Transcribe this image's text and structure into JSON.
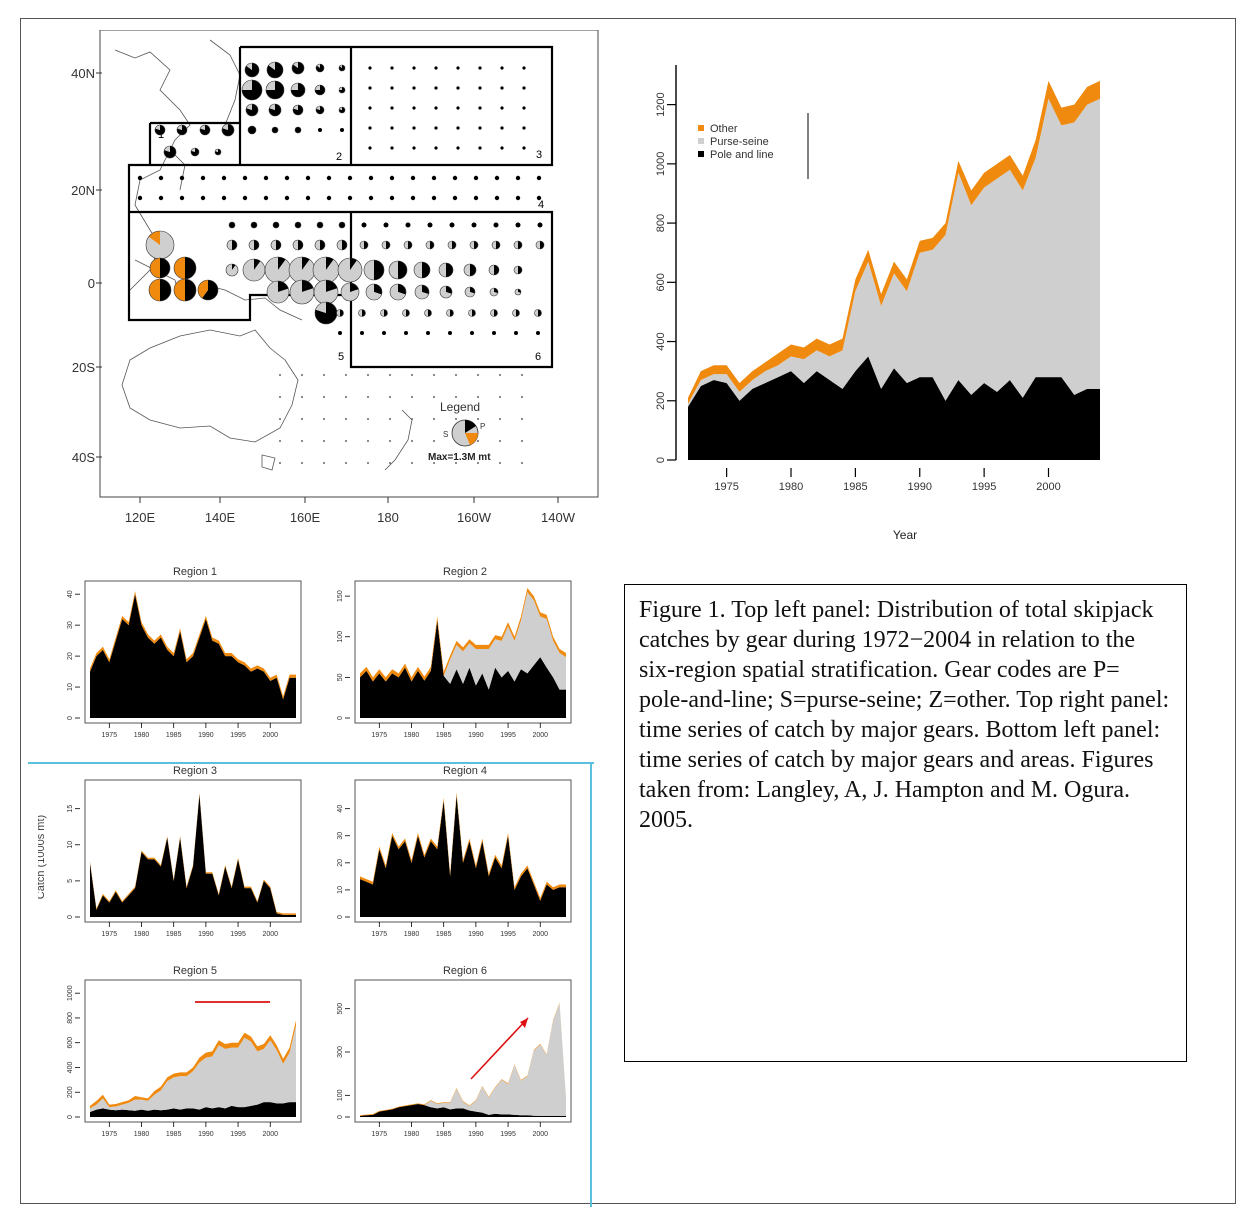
{
  "map": {
    "lat_labels": [
      "40N",
      "20N",
      "0",
      "20S",
      "40S"
    ],
    "lon_labels": [
      "120E",
      "140E",
      "160E",
      "180",
      "160W",
      "140W"
    ],
    "region_labels": [
      "1",
      "2",
      "3",
      "4",
      "5",
      "6"
    ],
    "legend_title": "Legend",
    "legend_max": "Max=1.3M mt",
    "legend_codes": [
      "S",
      "P"
    ],
    "colors": {
      "other": "#f08a0e",
      "purse_seine": "#cfcfcf",
      "pole_line": "#000000"
    }
  },
  "chart_data": [
    {
      "type": "area",
      "id": "total",
      "x": [
        1972,
        1973,
        1974,
        1975,
        1976,
        1977,
        1978,
        1979,
        1980,
        1981,
        1982,
        1983,
        1984,
        1985,
        1986,
        1987,
        1988,
        1989,
        1990,
        1991,
        1992,
        1993,
        1994,
        1995,
        1996,
        1997,
        1998,
        1999,
        2000,
        2001,
        2002,
        2003,
        2004
      ],
      "series": [
        {
          "name": "Pole and line",
          "key": "pl",
          "values": [
            180,
            250,
            270,
            260,
            200,
            240,
            260,
            280,
            300,
            260,
            300,
            270,
            240,
            300,
            350,
            240,
            310,
            260,
            280,
            280,
            200,
            270,
            220,
            260,
            230,
            270,
            210,
            280,
            280,
            280,
            220,
            240,
            240
          ]
        },
        {
          "name": "Purse-seine",
          "key": "ps",
          "values": [
            10,
            20,
            20,
            30,
            30,
            30,
            40,
            40,
            50,
            80,
            70,
            80,
            130,
            270,
            320,
            280,
            320,
            310,
            420,
            430,
            560,
            700,
            640,
            660,
            720,
            710,
            700,
            740,
            940,
            850,
            920,
            960,
            980
          ]
        },
        {
          "name": "Other",
          "key": "ot",
          "values": [
            20,
            30,
            30,
            30,
            30,
            30,
            30,
            40,
            40,
            40,
            40,
            40,
            40,
            40,
            40,
            40,
            40,
            40,
            40,
            40,
            40,
            40,
            50,
            50,
            50,
            50,
            50,
            60,
            60,
            60,
            60,
            60,
            60
          ]
        }
      ],
      "xticks": [
        1975,
        1980,
        1985,
        1990,
        1995,
        2000
      ],
      "yticks": [
        0,
        200,
        400,
        600,
        800,
        1000,
        1200
      ],
      "ylim": [
        0,
        1300
      ],
      "xlabel": "Year",
      "legend": [
        "Other",
        "Purse-seine",
        "Pole and line"
      ],
      "legend_position": "top-left"
    },
    {
      "type": "area",
      "id": "r1",
      "title": "Region 1",
      "x": [
        1972,
        1973,
        1974,
        1975,
        1976,
        1977,
        1978,
        1979,
        1980,
        1981,
        1982,
        1983,
        1984,
        1985,
        1986,
        1987,
        1988,
        1989,
        1990,
        1991,
        1992,
        1993,
        1994,
        1995,
        1996,
        1997,
        1998,
        1999,
        2000,
        2001,
        2002,
        2003,
        2004
      ],
      "series": [
        {
          "key": "pl",
          "values": [
            15,
            20,
            22,
            18,
            25,
            32,
            30,
            40,
            30,
            26,
            24,
            26,
            22,
            20,
            28,
            18,
            20,
            26,
            32,
            25,
            24,
            20,
            20,
            18,
            17,
            15,
            16,
            15,
            12,
            13,
            6,
            13,
            13
          ]
        },
        {
          "key": "ps",
          "values": [
            0,
            0,
            0,
            0,
            0,
            0,
            0,
            0,
            0,
            0,
            0,
            0,
            0,
            0,
            0,
            0,
            0,
            0,
            0,
            0,
            0,
            0,
            0,
            0,
            0,
            0,
            0,
            0,
            0,
            0,
            0,
            0,
            0
          ]
        },
        {
          "key": "ot",
          "values": [
            1,
            1,
            1,
            1,
            1,
            1,
            1,
            1,
            1,
            1,
            1,
            1,
            1,
            1,
            1,
            1,
            1,
            1,
            1,
            1,
            1,
            1,
            1,
            1,
            1,
            1,
            1,
            1,
            1,
            1,
            1,
            1,
            1
          ]
        }
      ],
      "xticks": [
        1975,
        1980,
        1985,
        1990,
        1995,
        2000
      ],
      "yticks": [
        0,
        10,
        20,
        30,
        40
      ],
      "ylim": [
        0,
        42
      ]
    },
    {
      "type": "area",
      "id": "r2",
      "title": "Region 2",
      "x": [
        1972,
        1973,
        1974,
        1975,
        1976,
        1977,
        1978,
        1979,
        1980,
        1981,
        1982,
        1983,
        1984,
        1985,
        1986,
        1987,
        1988,
        1989,
        1990,
        1991,
        1992,
        1993,
        1994,
        1995,
        1996,
        1997,
        1998,
        1999,
        2000,
        2001,
        2002,
        2003,
        2004
      ],
      "series": [
        {
          "key": "pl",
          "values": [
            50,
            58,
            45,
            55,
            45,
            55,
            50,
            62,
            45,
            58,
            46,
            58,
            120,
            52,
            42,
            60,
            42,
            62,
            40,
            55,
            35,
            62,
            50,
            58,
            45,
            60,
            55,
            65,
            75,
            62,
            50,
            35,
            35
          ]
        },
        {
          "key": "ps",
          "values": [
            0,
            0,
            0,
            0,
            0,
            0,
            0,
            0,
            0,
            0,
            0,
            0,
            0,
            0,
            30,
            30,
            40,
            30,
            45,
            30,
            50,
            35,
            45,
            55,
            50,
            60,
            100,
            80,
            50,
            60,
            45,
            45,
            40
          ]
        },
        {
          "key": "ot",
          "values": [
            5,
            5,
            5,
            5,
            5,
            5,
            5,
            5,
            5,
            5,
            5,
            5,
            5,
            5,
            5,
            5,
            5,
            5,
            5,
            5,
            5,
            5,
            5,
            5,
            5,
            5,
            5,
            5,
            5,
            5,
            5,
            5,
            5
          ]
        }
      ],
      "xticks": [
        1975,
        1980,
        1985,
        1990,
        1995,
        2000
      ],
      "yticks": [
        0,
        50,
        100,
        150
      ],
      "ylim": [
        0,
        160
      ]
    },
    {
      "type": "area",
      "id": "r3",
      "title": "Region 3",
      "x": [
        1972,
        1973,
        1974,
        1975,
        1976,
        1977,
        1978,
        1979,
        1980,
        1981,
        1982,
        1983,
        1984,
        1985,
        1986,
        1987,
        1988,
        1989,
        1990,
        1991,
        1992,
        1993,
        1994,
        1995,
        1996,
        1997,
        1998,
        1999,
        2000,
        2001,
        2002,
        2003,
        2004
      ],
      "series": [
        {
          "key": "pl",
          "values": [
            7.5,
            1,
            3,
            2,
            3.5,
            2,
            3,
            4,
            9,
            8,
            8,
            7,
            11,
            5,
            11,
            4,
            7,
            17,
            6,
            6,
            3,
            7,
            4,
            8,
            4,
            4,
            2,
            5,
            4,
            0.5,
            0.3,
            0.3,
            0.3
          ]
        },
        {
          "key": "ps",
          "values": [
            0,
            0,
            0,
            0,
            0,
            0,
            0,
            0,
            0,
            0,
            0,
            0,
            0,
            0,
            0,
            0,
            0,
            0,
            0,
            0,
            0,
            0,
            0,
            0,
            0,
            0,
            0,
            0,
            0,
            0,
            0,
            0,
            0
          ]
        },
        {
          "key": "ot",
          "values": [
            0.2,
            0.2,
            0.2,
            0.2,
            0.2,
            0.2,
            0.2,
            0.2,
            0.2,
            0.2,
            0.2,
            0.2,
            0.2,
            0.2,
            0.2,
            0.2,
            0.2,
            0.2,
            0.2,
            0.2,
            0.2,
            0.2,
            0.2,
            0.2,
            0.2,
            0.2,
            0.2,
            0.2,
            0.2,
            0.2,
            0.2,
            0.2,
            0.2
          ]
        }
      ],
      "xticks": [
        1975,
        1980,
        1985,
        1990,
        1995,
        2000
      ],
      "yticks": [
        0,
        5,
        10,
        15
      ],
      "ylim": [
        0,
        18
      ],
      "ylabel": "Catch (1000s mt)"
    },
    {
      "type": "area",
      "id": "r4",
      "title": "Region 4",
      "x": [
        1972,
        1973,
        1974,
        1975,
        1976,
        1977,
        1978,
        1979,
        1980,
        1981,
        1982,
        1983,
        1984,
        1985,
        1986,
        1987,
        1988,
        1989,
        1990,
        1991,
        1992,
        1993,
        1994,
        1995,
        1996,
        1997,
        1998,
        1999,
        2000,
        2001,
        2002,
        2003,
        2004
      ],
      "series": [
        {
          "key": "pl",
          "values": [
            14,
            13,
            12,
            25,
            18,
            30,
            25,
            28,
            20,
            30,
            22,
            28,
            25,
            43,
            15,
            45,
            20,
            28,
            18,
            28,
            15,
            22,
            18,
            30,
            10,
            15,
            18,
            12,
            6,
            12,
            10,
            11,
            11
          ]
        },
        {
          "key": "ps",
          "values": [
            0,
            0,
            0,
            0,
            0,
            0,
            0,
            0,
            0,
            0,
            0,
            0,
            0,
            0,
            0,
            0,
            0,
            0,
            0,
            0,
            0,
            0,
            0,
            0,
            0,
            0,
            0,
            0,
            0,
            0,
            0,
            0,
            0
          ]
        },
        {
          "key": "ot",
          "values": [
            1,
            1,
            1,
            1,
            1,
            1,
            1,
            1,
            1,
            1,
            1,
            1,
            1,
            1,
            1,
            1,
            1,
            1,
            1,
            1,
            1,
            1,
            1,
            1,
            1,
            1,
            1,
            1,
            1,
            1,
            1,
            1,
            1
          ]
        }
      ],
      "xticks": [
        1975,
        1980,
        1985,
        1990,
        1995,
        2000
      ],
      "yticks": [
        0,
        10,
        20,
        30,
        40
      ],
      "ylim": [
        0,
        48
      ]
    },
    {
      "type": "area",
      "id": "r5",
      "title": "Region 5",
      "x": [
        1972,
        1973,
        1974,
        1975,
        1976,
        1977,
        1978,
        1979,
        1980,
        1981,
        1982,
        1983,
        1984,
        1985,
        1986,
        1987,
        1988,
        1989,
        1990,
        1991,
        1992,
        1993,
        1994,
        1995,
        1996,
        1997,
        1998,
        1999,
        2000,
        2001,
        2002,
        2003,
        2004
      ],
      "series": [
        {
          "key": "pl",
          "values": [
            40,
            60,
            70,
            60,
            55,
            60,
            55,
            50,
            60,
            50,
            60,
            55,
            60,
            70,
            60,
            70,
            70,
            60,
            80,
            70,
            80,
            70,
            90,
            80,
            80,
            90,
            100,
            120,
            120,
            110,
            110,
            120,
            120
          ]
        },
        {
          "key": "ps",
          "values": [
            30,
            40,
            80,
            20,
            30,
            40,
            60,
            90,
            80,
            80,
            120,
            160,
            230,
            250,
            270,
            260,
            300,
            380,
            400,
            420,
            500,
            480,
            470,
            480,
            560,
            520,
            430,
            430,
            500,
            430,
            320,
            400,
            620
          ]
        },
        {
          "key": "ot",
          "values": [
            20,
            30,
            30,
            20,
            20,
            20,
            20,
            30,
            20,
            20,
            30,
            30,
            30,
            30,
            30,
            30,
            30,
            40,
            40,
            40,
            40,
            40,
            40,
            40,
            40,
            40,
            40,
            40,
            40,
            40,
            40,
            40,
            40
          ]
        }
      ],
      "xticks": [
        1975,
        1980,
        1985,
        1990,
        1995,
        2000
      ],
      "yticks": [
        0,
        200,
        400,
        600,
        800,
        1000
      ],
      "ylim": [
        0,
        1050
      ]
    },
    {
      "type": "area",
      "id": "r6",
      "title": "Region 6",
      "x": [
        1972,
        1973,
        1974,
        1975,
        1976,
        1977,
        1978,
        1979,
        1980,
        1981,
        1982,
        1983,
        1984,
        1985,
        1986,
        1987,
        1988,
        1989,
        1990,
        1991,
        1992,
        1993,
        1994,
        1995,
        1996,
        1997,
        1998,
        1999,
        2000,
        2001,
        2002,
        2003,
        2004
      ],
      "series": [
        {
          "key": "pl",
          "values": [
            5,
            8,
            10,
            25,
            30,
            35,
            45,
            50,
            55,
            60,
            55,
            45,
            40,
            45,
            35,
            40,
            40,
            30,
            25,
            20,
            10,
            15,
            12,
            12,
            10,
            8,
            8,
            6,
            5,
            5,
            5,
            5,
            5
          ]
        },
        {
          "key": "ps",
          "values": [
            0,
            0,
            0,
            0,
            0,
            0,
            0,
            0,
            0,
            0,
            0,
            30,
            20,
            20,
            30,
            90,
            30,
            20,
            50,
            120,
            80,
            120,
            160,
            140,
            230,
            160,
            180,
            300,
            330,
            280,
            440,
            520,
            80
          ]
        },
        {
          "key": "ot",
          "values": [
            3,
            3,
            3,
            3,
            3,
            3,
            3,
            3,
            3,
            3,
            3,
            3,
            3,
            3,
            3,
            3,
            3,
            3,
            3,
            3,
            3,
            3,
            3,
            3,
            3,
            3,
            3,
            3,
            3,
            3,
            3,
            3,
            3
          ]
        }
      ],
      "xticks": [
        1975,
        1980,
        1985,
        1990,
        1995,
        2000
      ],
      "yticks": [
        0,
        100,
        300,
        500
      ],
      "ylim": [
        0,
        600
      ]
    }
  ],
  "caption": {
    "text": "Figure 1. Top left panel: Distribution of total skipjack catches by gear during 1972−2004 in relation to the six-region spatial stratification. Gear codes are P= pole-and-line; S=purse-seine; Z=other. Top right panel: time series of catch by major gears. Bottom left panel: time series of catch by major gears and areas. Figures taken from: Langley, A, J. Hampton and M. Ogura. 2005."
  }
}
